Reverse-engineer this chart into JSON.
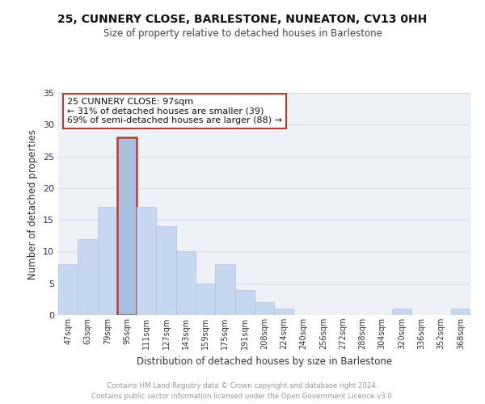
{
  "title": "25, CUNNERY CLOSE, BARLESTONE, NUNEATON, CV13 0HH",
  "subtitle": "Size of property relative to detached houses in Barlestone",
  "xlabel": "Distribution of detached houses by size in Barlestone",
  "ylabel": "Number of detached properties",
  "bar_labels": [
    "47sqm",
    "63sqm",
    "79sqm",
    "95sqm",
    "111sqm",
    "127sqm",
    "143sqm",
    "159sqm",
    "175sqm",
    "191sqm",
    "208sqm",
    "224sqm",
    "240sqm",
    "256sqm",
    "272sqm",
    "288sqm",
    "304sqm",
    "320sqm",
    "336sqm",
    "352sqm",
    "368sqm"
  ],
  "bar_values": [
    8,
    12,
    17,
    28,
    17,
    14,
    10,
    5,
    8,
    4,
    2,
    1,
    0,
    0,
    0,
    0,
    0,
    1,
    0,
    0,
    1
  ],
  "bar_color": "#c5d8f0",
  "bar_edge_color": "#aac4e0",
  "highlight_bar_index": 3,
  "highlight_bar_color": "#a8c0e0",
  "highlight_edge_color": "#c0392b",
  "ylim": [
    0,
    35
  ],
  "yticks": [
    0,
    5,
    10,
    15,
    20,
    25,
    30,
    35
  ],
  "annotation_text": "25 CUNNERY CLOSE: 97sqm\n← 31% of detached houses are smaller (39)\n69% of semi-detached houses are larger (88) →",
  "annotation_box_color": "#ffffff",
  "annotation_box_edge_color": "#c0392b",
  "footer_line1": "Contains HM Land Registry data © Crown copyright and database right 2024.",
  "footer_line2": "Contains public sector information licensed under the Open Government Licence v3.0.",
  "grid_color": "#d0dce8",
  "background_color": "#eef2f7"
}
